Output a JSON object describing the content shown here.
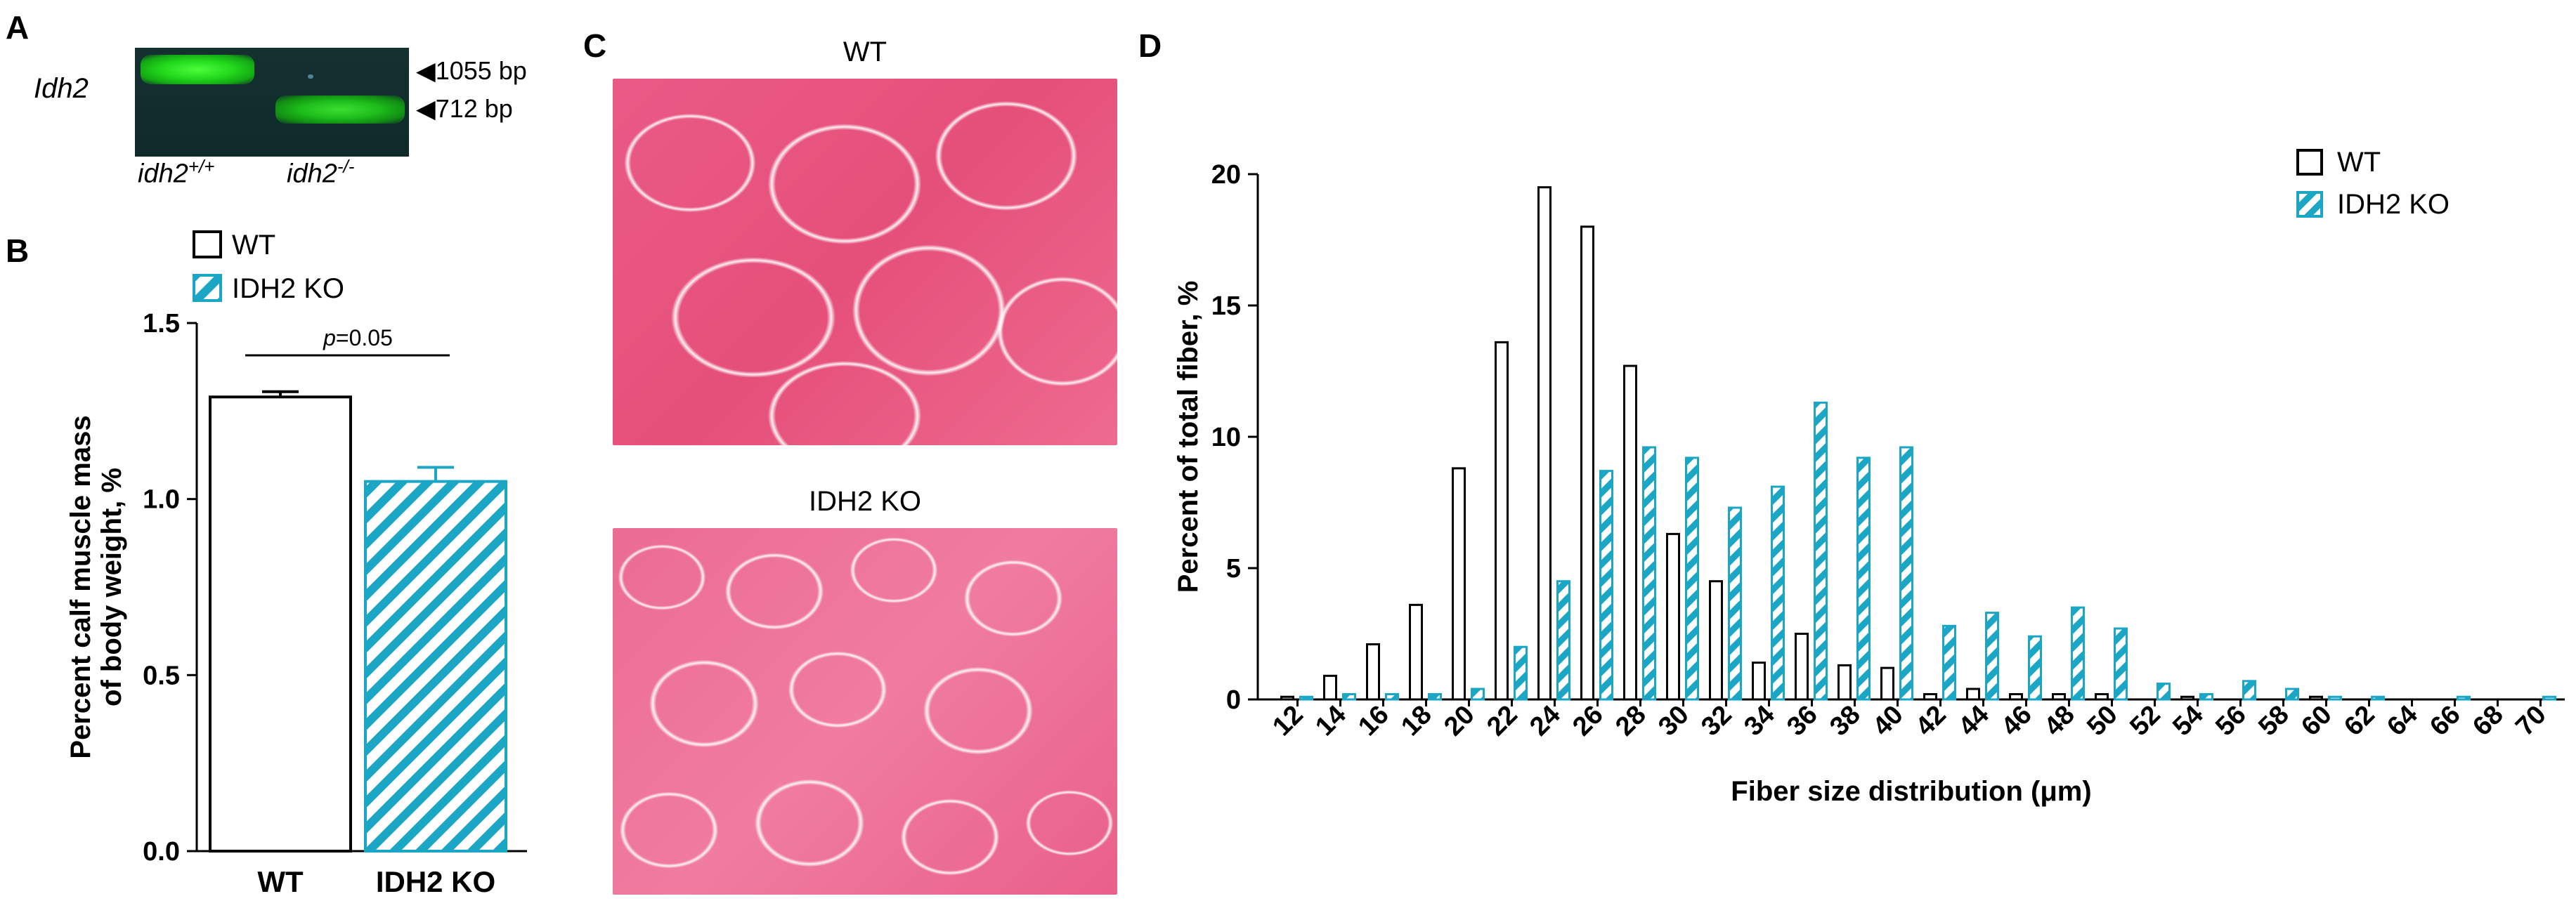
{
  "panels": {
    "A": {
      "letter": "A",
      "gene_label": "Idh2",
      "bands": [
        {
          "label": "1055 bp"
        },
        {
          "label": "712 bp"
        }
      ],
      "lane_labels": [
        {
          "base": "idh2",
          "sup": "+/+"
        },
        {
          "base": "idh2",
          "sup": "-/-"
        }
      ]
    },
    "B": {
      "letter": "B"
    },
    "C": {
      "letter": "C",
      "image_titles": [
        "WT",
        "IDH2 KO"
      ]
    },
    "D": {
      "letter": "D"
    }
  },
  "chart_data": [
    {
      "id": "B",
      "type": "bar",
      "categories": [
        "WT",
        "IDH2 KO"
      ],
      "values": [
        1.29,
        1.05
      ],
      "errors": [
        0.015,
        0.04
      ],
      "ylabel": "Percent calf muscle mass of body weight, %",
      "ylabel_lines": [
        "Percent calf muscle mass",
        "of body weight, %"
      ],
      "xlabel": "",
      "ylim": [
        0.0,
        1.5
      ],
      "yticks": [
        "0.0",
        "0.5",
        "1.0",
        "1.5"
      ],
      "ytick_values": [
        0.0,
        0.5,
        1.0,
        1.5
      ],
      "legend": [
        "WT",
        "IDH2 KO"
      ],
      "legend_position": "top-left",
      "annotation": {
        "p_label": "p",
        "p_value": "=0.05"
      },
      "series_colors": {
        "WT": "#000000",
        "IDH2 KO": "#1aa6c4"
      }
    },
    {
      "id": "D",
      "type": "bar",
      "xlabel": "Fiber size distribution (μm)",
      "ylabel": "Percent of total fiber, %",
      "ylim": [
        0,
        20
      ],
      "yticks": [
        "0",
        "5",
        "10",
        "15",
        "20"
      ],
      "ytick_values": [
        0,
        5,
        10,
        15,
        20
      ],
      "categories": [
        "12",
        "14",
        "16",
        "18",
        "20",
        "22",
        "24",
        "26",
        "28",
        "30",
        "32",
        "34",
        "36",
        "38",
        "40",
        "42",
        "44",
        "46",
        "48",
        "50",
        "52",
        "54",
        "56",
        "58",
        "60",
        "62",
        "64",
        "66",
        "68",
        "70"
      ],
      "series": [
        {
          "name": "WT",
          "color": "#000000",
          "values": [
            0.1,
            0.9,
            2.1,
            3.6,
            8.8,
            13.6,
            19.5,
            18.0,
            12.7,
            6.3,
            4.5,
            1.4,
            2.5,
            1.3,
            1.2,
            0.2,
            0.4,
            0.2,
            0.2,
            0.2,
            0.0,
            0.1,
            0.0,
            0.0,
            0.1,
            0.0,
            0.0,
            0.0,
            0.0,
            0.0
          ]
        },
        {
          "name": "IDH2 KO",
          "color": "#1aa6c4",
          "values": [
            0.1,
            0.2,
            0.2,
            0.2,
            0.4,
            2.0,
            4.5,
            8.7,
            9.6,
            9.2,
            7.3,
            8.1,
            11.3,
            9.2,
            9.6,
            2.8,
            3.3,
            2.4,
            3.5,
            2.7,
            0.6,
            0.2,
            0.7,
            0.4,
            0.1,
            0.1,
            0.0,
            0.1,
            0.0,
            0.1
          ]
        }
      ],
      "legend": [
        "WT",
        "IDH2 KO"
      ],
      "legend_position": "top-right"
    }
  ]
}
